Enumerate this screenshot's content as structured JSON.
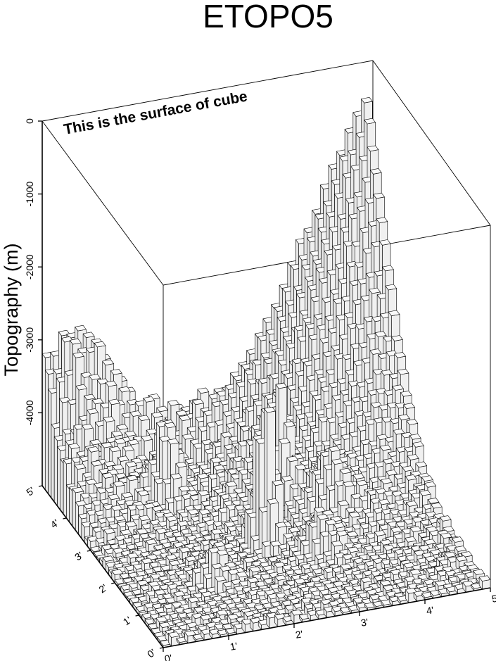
{
  "chart_data": {
    "type": "bar3d",
    "title": "ETOPO5",
    "ylabel": "Topography (m)",
    "annotation": "This is the surface of cube",
    "x_ticks": [
      "0'",
      "1'",
      "2'",
      "3'",
      "4'",
      "5'"
    ],
    "y_ticks": [
      "0'",
      "1'",
      "2'",
      "3'",
      "4'",
      "5'"
    ],
    "z_ticks": [
      "0",
      "-1000",
      "-2000",
      "-3000",
      "-4000"
    ],
    "x_range": [
      0,
      5
    ],
    "y_range": [
      0,
      5
    ],
    "z_range": [
      -5000,
      0
    ],
    "grid_size": [
      40,
      40
    ],
    "surface_description": "Seafloor rising from about -5000 m at the front to about -500 m at the back-right ridge, rough hills along the back-left edge, and isolated seamounts in the middle",
    "bar_fill": "#f0f0f0",
    "bar_edge": "#000000"
  }
}
